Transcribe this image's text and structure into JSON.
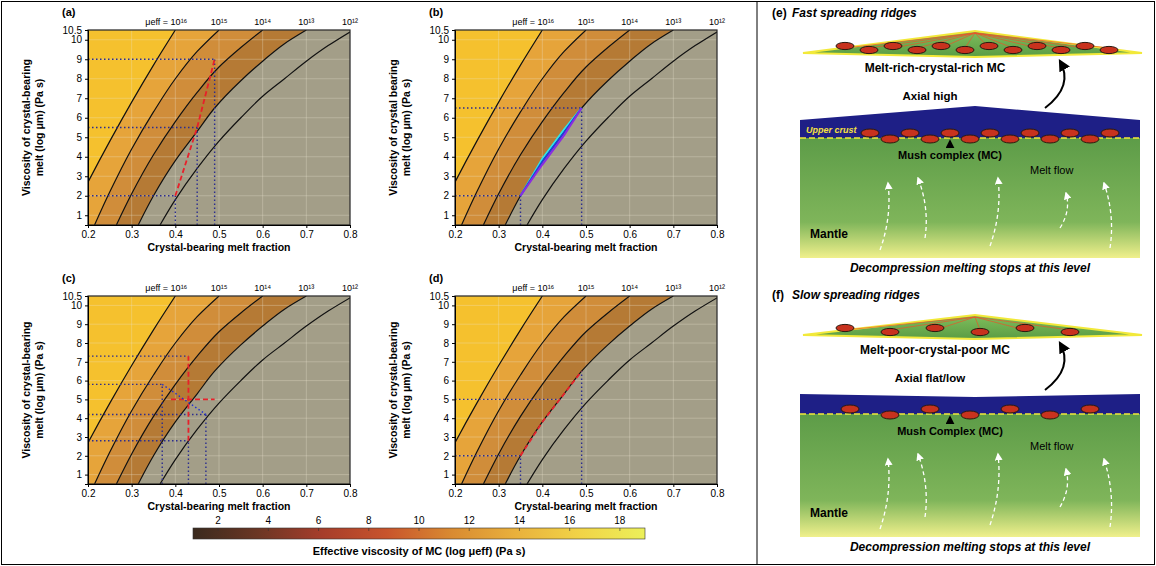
{
  "chart_data": [
    {
      "type": "contour",
      "panel": "(a)",
      "x_label": "Crystal-bearing melt fraction",
      "y_label": "Viscosity of crystal-bearing melt (log μm) (Pa s)",
      "xlim": [
        0.2,
        0.8
      ],
      "xticks": [
        0.2,
        0.3,
        0.4,
        0.5,
        0.6,
        0.7,
        0.8
      ],
      "ylim": [
        0.5,
        10.5
      ],
      "yticks": [
        1,
        2,
        3,
        4,
        5,
        6,
        7,
        8,
        9,
        10,
        10.5
      ],
      "grid": true,
      "colors": [
        "#f5c12e",
        "#e6a43a",
        "#d08d3a",
        "#b57a35",
        "#a39e88"
      ],
      "contours": [
        {
          "label": "μeff = 10¹⁶",
          "x": [
            0.15,
            0.2,
            0.25,
            0.3,
            0.35,
            0.4
          ],
          "y": [
            0.5,
            2.7,
            4.8,
            6.8,
            8.7,
            10.5
          ]
        },
        {
          "label": "10¹⁵",
          "x": [
            0.215,
            0.25,
            0.3,
            0.35,
            0.4,
            0.45,
            0.5
          ],
          "y": [
            0.5,
            2.2,
            4.4,
            6.3,
            8.0,
            9.4,
            10.5
          ]
        },
        {
          "label": "10¹⁴",
          "x": [
            0.265,
            0.3,
            0.35,
            0.4,
            0.45,
            0.5,
            0.55,
            0.6
          ],
          "y": [
            0.5,
            2.1,
            4.1,
            5.8,
            7.3,
            8.6,
            9.6,
            10.5
          ]
        },
        {
          "label": "10¹³",
          "x": [
            0.315,
            0.35,
            0.4,
            0.45,
            0.49,
            0.55,
            0.6,
            0.65,
            0.7
          ],
          "y": [
            0.5,
            2.0,
            3.8,
            5.3,
            6.5,
            7.9,
            8.9,
            9.8,
            10.5
          ]
        },
        {
          "label": "10¹²",
          "x": [
            0.365,
            0.4,
            0.45,
            0.5,
            0.55,
            0.6,
            0.65,
            0.7,
            0.75,
            0.8
          ],
          "y": [
            0.5,
            1.8,
            3.4,
            4.8,
            6.0,
            7.1,
            8.0,
            8.9,
            9.7,
            10.4
          ]
        }
      ],
      "series": [
        {
          "color": "#2b2d8f",
          "line_style": "dotted",
          "x": [
            0.2,
            0.49
          ],
          "y": [
            9,
            9
          ]
        },
        {
          "color": "#2b2d8f",
          "line_style": "dotted",
          "x": [
            0.2,
            0.45
          ],
          "y": [
            5.5,
            5.5
          ]
        },
        {
          "color": "#2b2d8f",
          "line_style": "dotted",
          "x": [
            0.2,
            0.4
          ],
          "y": [
            2,
            2
          ]
        },
        {
          "color": "#2b2d8f",
          "line_style": "dotted",
          "x": [
            0.4,
            0.4
          ],
          "y": [
            0.5,
            2
          ]
        },
        {
          "color": "#2b2d8f",
          "line_style": "dotted",
          "x": [
            0.45,
            0.45
          ],
          "y": [
            0.5,
            5.5
          ]
        },
        {
          "color": "#2b2d8f",
          "line_style": "dotted",
          "x": [
            0.49,
            0.49
          ],
          "y": [
            0.5,
            9
          ]
        },
        {
          "color": "#e8202a",
          "line_style": "dashed",
          "x": [
            0.4,
            0.45,
            0.49
          ],
          "y": [
            2,
            5.5,
            9
          ]
        }
      ]
    },
    {
      "type": "contour",
      "panel": "(b)",
      "x_label": "Crystal-bearing melt fraction",
      "y_label": "Viscosity of crystal bearing melt (log μm) (Pa s)",
      "xlim": [
        0.2,
        0.8
      ],
      "xticks": [
        0.2,
        0.3,
        0.4,
        0.5,
        0.6,
        0.7,
        0.8
      ],
      "ylim": [
        0.5,
        10.5
      ],
      "yticks": [
        1,
        2,
        3,
        4,
        5,
        6,
        7,
        8,
        9,
        10,
        10.5
      ],
      "grid": true,
      "colors": [
        "#f5c12e",
        "#e6a43a",
        "#d08d3a",
        "#b57a35",
        "#a39e88"
      ],
      "contours": [
        {
          "label": "μeff = 10¹⁶",
          "x": [
            0.15,
            0.2,
            0.25,
            0.3,
            0.35,
            0.4
          ],
          "y": [
            0.5,
            2.7,
            4.8,
            6.8,
            8.7,
            10.5
          ]
        },
        {
          "label": "10¹⁵",
          "x": [
            0.215,
            0.25,
            0.3,
            0.35,
            0.4,
            0.45,
            0.5
          ],
          "y": [
            0.5,
            2.2,
            4.4,
            6.3,
            8.0,
            9.4,
            10.5
          ]
        },
        {
          "label": "10¹⁴",
          "x": [
            0.265,
            0.3,
            0.35,
            0.4,
            0.45,
            0.5,
            0.55,
            0.6
          ],
          "y": [
            0.5,
            2.1,
            4.1,
            5.8,
            7.3,
            8.6,
            9.6,
            10.5
          ]
        },
        {
          "label": "10¹³",
          "x": [
            0.315,
            0.35,
            0.4,
            0.45,
            0.49,
            0.55,
            0.6,
            0.65,
            0.7
          ],
          "y": [
            0.5,
            2.0,
            3.8,
            5.3,
            6.5,
            7.9,
            8.9,
            9.8,
            10.5
          ]
        },
        {
          "label": "10¹²",
          "x": [
            0.365,
            0.4,
            0.45,
            0.5,
            0.55,
            0.6,
            0.65,
            0.7,
            0.75,
            0.8
          ],
          "y": [
            0.5,
            1.8,
            3.4,
            4.8,
            6.0,
            7.1,
            8.0,
            8.9,
            9.7,
            10.4
          ]
        }
      ],
      "series": [
        {
          "color": "#2b2d8f",
          "line_style": "dotted",
          "x": [
            0.2,
            0.49
          ],
          "y": [
            6.5,
            6.5
          ]
        },
        {
          "color": "#2b2d8f",
          "line_style": "dotted",
          "x": [
            0.2,
            0.35
          ],
          "y": [
            2,
            2
          ]
        },
        {
          "color": "#2b2d8f",
          "line_style": "dotted",
          "x": [
            0.35,
            0.35
          ],
          "y": [
            0.5,
            2
          ]
        },
        {
          "color": "#2b2d8f",
          "line_style": "dotted",
          "x": [
            0.49,
            0.49
          ],
          "y": [
            0.5,
            6.5
          ]
        },
        {
          "color": "#2ee6e6",
          "line_style": "solid",
          "x": [
            0.35,
            0.4,
            0.45,
            0.49
          ],
          "y": [
            2,
            3.9,
            5.4,
            6.5
          ]
        },
        {
          "color": "#1f3fd6",
          "line_style": "solid",
          "x": [
            0.35,
            0.4,
            0.45,
            0.49
          ],
          "y": [
            2,
            3.75,
            5.25,
            6.5
          ]
        },
        {
          "color": "#8a2be2",
          "line_style": "solid",
          "x": [
            0.35,
            0.4,
            0.45,
            0.49
          ],
          "y": [
            2,
            3.6,
            5.1,
            6.5
          ]
        }
      ]
    },
    {
      "type": "contour",
      "panel": "(c)",
      "x_label": "Crystal-bearing melt fraction",
      "y_label": "Viscosity of crystal-bearing melt (log μm) (Pa s)",
      "xlim": [
        0.2,
        0.8
      ],
      "xticks": [
        0.2,
        0.3,
        0.4,
        0.5,
        0.6,
        0.7,
        0.8
      ],
      "ylim": [
        0.5,
        10.5
      ],
      "yticks": [
        1,
        2,
        3,
        4,
        5,
        6,
        7,
        8,
        9,
        10,
        10.5
      ],
      "grid": true,
      "colors": [
        "#f5c12e",
        "#e6a43a",
        "#d08d3a",
        "#b57a35",
        "#a39e88"
      ],
      "contours": [
        {
          "label": "μeff = 10¹⁶",
          "x": [
            0.15,
            0.2,
            0.25,
            0.3,
            0.35,
            0.4
          ],
          "y": [
            0.5,
            2.7,
            4.8,
            6.8,
            8.7,
            10.5
          ]
        },
        {
          "label": "10¹⁵",
          "x": [
            0.215,
            0.25,
            0.3,
            0.35,
            0.4,
            0.45,
            0.5
          ],
          "y": [
            0.5,
            2.2,
            4.4,
            6.3,
            8.0,
            9.4,
            10.5
          ]
        },
        {
          "label": "10¹⁴",
          "x": [
            0.265,
            0.3,
            0.35,
            0.4,
            0.45,
            0.5,
            0.55,
            0.6
          ],
          "y": [
            0.5,
            2.1,
            4.1,
            5.8,
            7.3,
            8.6,
            9.6,
            10.5
          ]
        },
        {
          "label": "10¹³",
          "x": [
            0.315,
            0.35,
            0.4,
            0.45,
            0.49,
            0.55,
            0.6,
            0.65,
            0.7
          ],
          "y": [
            0.5,
            2.0,
            3.8,
            5.3,
            6.5,
            7.9,
            8.9,
            9.8,
            10.5
          ]
        },
        {
          "label": "10¹²",
          "x": [
            0.365,
            0.4,
            0.45,
            0.5,
            0.55,
            0.6,
            0.65,
            0.7,
            0.75,
            0.8
          ],
          "y": [
            0.5,
            1.8,
            3.4,
            4.8,
            6.0,
            7.1,
            8.0,
            8.9,
            9.7,
            10.4
          ]
        }
      ],
      "series": [
        {
          "color": "#2b2d8f",
          "line_style": "dotted",
          "x": [
            0.2,
            0.43
          ],
          "y": [
            7.3,
            7.3
          ]
        },
        {
          "color": "#2b2d8f",
          "line_style": "dotted",
          "x": [
            0.2,
            0.37
          ],
          "y": [
            5.8,
            5.8
          ]
        },
        {
          "color": "#2b2d8f",
          "line_style": "dotted",
          "x": [
            0.2,
            0.47
          ],
          "y": [
            4.2,
            4.2
          ]
        },
        {
          "color": "#2b2d8f",
          "line_style": "dotted",
          "x": [
            0.2,
            0.43
          ],
          "y": [
            2.8,
            2.8
          ]
        },
        {
          "color": "#2b2d8f",
          "line_style": "dotted",
          "x": [
            0.37,
            0.37
          ],
          "y": [
            0.5,
            5.8
          ]
        },
        {
          "color": "#2b2d8f",
          "line_style": "dotted",
          "x": [
            0.43,
            0.43
          ],
          "y": [
            0.5,
            2.8
          ]
        },
        {
          "color": "#2b2d8f",
          "line_style": "dotted",
          "x": [
            0.47,
            0.47
          ],
          "y": [
            0.5,
            4.2
          ]
        },
        {
          "color": "#e8202a",
          "line_style": "dashed",
          "x": [
            0.43,
            0.43
          ],
          "y": [
            2.8,
            7.3
          ]
        },
        {
          "color": "#e8202a",
          "line_style": "dashed",
          "x": [
            0.39,
            0.49
          ],
          "y": [
            5,
            5
          ]
        },
        {
          "color": "#1f2fd0",
          "line_style": "dotted",
          "x": [
            0.37,
            0.47
          ],
          "y": [
            5.8,
            4.2
          ]
        }
      ]
    },
    {
      "type": "contour",
      "panel": "(d)",
      "x_label": "Crystal-bearing melt fraction",
      "y_label": "Viscosity of crystal-bearing melt (log μm) (Pa s)",
      "xlim": [
        0.2,
        0.8
      ],
      "xticks": [
        0.2,
        0.3,
        0.4,
        0.5,
        0.6,
        0.7,
        0.8
      ],
      "ylim": [
        0.5,
        10.5
      ],
      "yticks": [
        1,
        2,
        3,
        4,
        5,
        6,
        7,
        8,
        9,
        10,
        10.5
      ],
      "grid": true,
      "colors": [
        "#f5c12e",
        "#e6a43a",
        "#d08d3a",
        "#b57a35",
        "#a39e88"
      ],
      "contours": [
        {
          "label": "μeff = 10¹⁶",
          "x": [
            0.15,
            0.2,
            0.25,
            0.3,
            0.35,
            0.4
          ],
          "y": [
            0.5,
            2.7,
            4.8,
            6.8,
            8.7,
            10.5
          ]
        },
        {
          "label": "10¹⁵",
          "x": [
            0.215,
            0.25,
            0.3,
            0.35,
            0.4,
            0.45,
            0.5
          ],
          "y": [
            0.5,
            2.2,
            4.4,
            6.3,
            8.0,
            9.4,
            10.5
          ]
        },
        {
          "label": "10¹⁴",
          "x": [
            0.265,
            0.3,
            0.35,
            0.4,
            0.45,
            0.5,
            0.55,
            0.6
          ],
          "y": [
            0.5,
            2.1,
            4.1,
            5.8,
            7.3,
            8.6,
            9.6,
            10.5
          ]
        },
        {
          "label": "10¹³",
          "x": [
            0.315,
            0.35,
            0.4,
            0.45,
            0.49,
            0.55,
            0.6,
            0.65,
            0.7
          ],
          "y": [
            0.5,
            2.0,
            3.8,
            5.3,
            6.5,
            7.9,
            8.9,
            9.8,
            10.5
          ]
        },
        {
          "label": "10¹²",
          "x": [
            0.365,
            0.4,
            0.45,
            0.5,
            0.55,
            0.6,
            0.65,
            0.7,
            0.75,
            0.8
          ],
          "y": [
            0.5,
            1.8,
            3.4,
            4.8,
            6.0,
            7.1,
            8.0,
            8.9,
            9.7,
            10.4
          ]
        }
      ],
      "series": [
        {
          "color": "#2b2d8f",
          "line_style": "dotted",
          "x": [
            0.2,
            0.445
          ],
          "y": [
            5,
            5
          ]
        },
        {
          "color": "#2b2d8f",
          "line_style": "dotted",
          "x": [
            0.2,
            0.35
          ],
          "y": [
            2,
            2
          ]
        },
        {
          "color": "#2b2d8f",
          "line_style": "dotted",
          "x": [
            0.35,
            0.35
          ],
          "y": [
            0.5,
            2
          ]
        },
        {
          "color": "#2b2d8f",
          "line_style": "dotted",
          "x": [
            0.49,
            0.49
          ],
          "y": [
            0.5,
            6.5
          ]
        },
        {
          "color": "#e8202a",
          "line_style": "dashed",
          "x": [
            0.35,
            0.4,
            0.45,
            0.49
          ],
          "y": [
            2,
            3.8,
            5.3,
            6.5
          ]
        }
      ]
    }
  ],
  "colorbar": {
    "label": "Effective viscosity of MC (log μeff) (Pa s)",
    "range": [
      1,
      19
    ],
    "ticks": [
      2,
      4,
      6,
      8,
      10,
      12,
      14,
      16,
      18
    ],
    "colors": [
      "#3a2a1e",
      "#6b3624",
      "#a63d2b",
      "#c8542c",
      "#d98a31",
      "#e9b13c",
      "#f1d447",
      "#ecf05a"
    ]
  },
  "diagrams": [
    {
      "panel": "(e)",
      "title": "Fast spreading ridges",
      "lens_label": "Melt-rich-crystal-rich MC",
      "axial_label": "Axial high",
      "crust_label": "Upper crust",
      "mush_label": "Mush complex (MC)",
      "flow_label": "Melt flow",
      "mantle_label": "Mantle",
      "base_label": "Decompression melting stops at this level"
    },
    {
      "panel": "(f)",
      "title": "Slow spreading ridges",
      "lens_label": "Melt-poor-crystal-poor MC",
      "axial_label": "Axial flat/low",
      "mush_label": "Mush Complex (MC)",
      "flow_label": "Melt flow",
      "mantle_label": "Mantle",
      "base_label": "Decompression melting stops at this level"
    }
  ]
}
